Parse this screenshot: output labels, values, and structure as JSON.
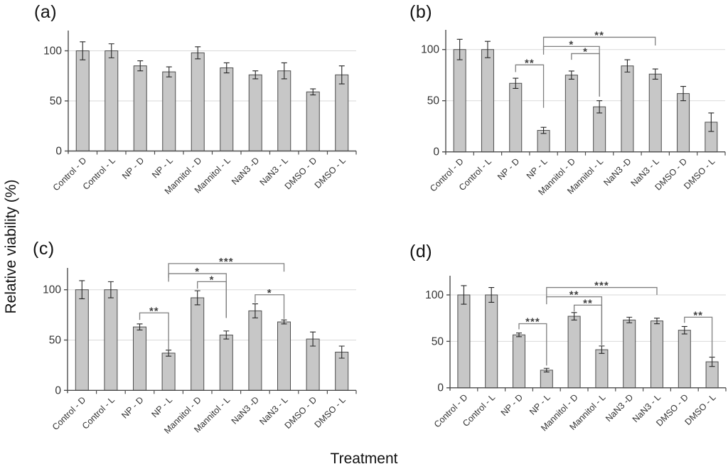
{
  "figure": {
    "ylabel": "Relative viability (%)",
    "xlabel": "Treatment"
  },
  "style": {
    "bar_fill": "#c7c7c7",
    "bar_stroke": "#4d4d4d",
    "error_bar": "#262626",
    "gridline": "#d9d9d9",
    "axis": "#4d4d4d",
    "tick_label": "#333333",
    "bracket": "#7f7f7f",
    "sig_label": "#3f3f3f"
  },
  "chart_data": [
    {
      "type": "bar",
      "panel": "(a)",
      "categories": [
        "Control - D",
        "Control - L",
        "NP - D",
        "NP - L",
        "Mannitol - D",
        "Mannitol - L",
        "NaN3 -D",
        "NaN3 - L",
        "DMSO - D",
        "DMSO - L"
      ],
      "values": [
        100,
        100,
        85,
        79,
        98,
        83,
        76,
        80,
        59,
        76
      ],
      "errors": [
        9,
        7,
        5,
        5,
        6,
        5,
        4,
        8,
        3,
        9
      ],
      "yticks": [
        0,
        50,
        100
      ],
      "ylim": [
        0,
        120
      ],
      "grid": true,
      "significance": []
    },
    {
      "type": "bar",
      "panel": "(b)",
      "categories": [
        "Control - D",
        "Control - L",
        "NP - D",
        "NP - L",
        "Mannitol - D",
        "Mannitol - L",
        "NaN3 -D",
        "NaN3 - L",
        "DMSO - D",
        "DMSO - L"
      ],
      "values": [
        100,
        100,
        67,
        21,
        75,
        44,
        84,
        76,
        57,
        29
      ],
      "errors": [
        10,
        8,
        5,
        3,
        4,
        6,
        6,
        5,
        7,
        9
      ],
      "yticks": [
        0,
        50,
        100
      ],
      "ylim": [
        0,
        120
      ],
      "grid": true,
      "significance": [
        {
          "from": "NP - D",
          "to": "NP - L",
          "label": "**",
          "y": 85,
          "drop_from": 7,
          "drop_to": 42
        },
        {
          "from": "Mannitol - D",
          "to": "Mannitol - L",
          "label": "*",
          "y": 96,
          "drop_from": 6,
          "drop_to": 42
        },
        {
          "from": "NP - L",
          "to": "Mannitol - L",
          "label": "*",
          "y": 103,
          "drop_from": 8,
          "drop_to": 49
        },
        {
          "from": "NP - L",
          "to": "NaN3 - L",
          "label": "**",
          "y": 112,
          "drop_from": 12,
          "drop_to": 8
        }
      ]
    },
    {
      "type": "bar",
      "panel": "(c)",
      "categories": [
        "Control - D",
        "Control - L",
        "NP - D",
        "NP - L",
        "Mannitol - D",
        "Mannitol - L",
        "NaN3 -D",
        "NaN3 - L",
        "DMSO - D",
        "DMSO - L"
      ],
      "values": [
        100,
        100,
        63,
        37,
        92,
        55,
        79,
        68,
        51,
        38
      ],
      "errors": [
        9,
        8,
        3,
        3,
        7,
        4,
        7,
        2,
        7,
        6
      ],
      "yticks": [
        0,
        50,
        100
      ],
      "ylim": [
        0,
        120
      ],
      "grid": true,
      "significance": [
        {
          "from": "NP - D",
          "to": "NP - L",
          "label": "**",
          "y": 77,
          "drop_from": 7,
          "drop_to": 37
        },
        {
          "from": "Mannitol - D",
          "to": "Mannitol - L",
          "label": "*",
          "y": 108,
          "drop_from": 7,
          "drop_to": 36
        },
        {
          "from": "NP - L",
          "to": "Mannitol - L",
          "label": "*",
          "y": 116,
          "drop_from": 8,
          "drop_to": 44
        },
        {
          "from": "NP - L",
          "to": "NaN3 - L",
          "label": "***",
          "y": 126,
          "drop_from": 14,
          "drop_to": 8
        },
        {
          "from": "NaN3 -D",
          "to": "NaN3 - L",
          "label": "*",
          "y": 95,
          "drop_from": 8,
          "drop_to": 24
        }
      ]
    },
    {
      "type": "bar",
      "panel": "(d)",
      "categories": [
        "Control - D",
        "Control - L",
        "NP - D",
        "NP - L",
        "Mannitol - D",
        "Mannitol - L",
        "NaN3 -D",
        "NaN3 - L",
        "DMSO - D",
        "DMSO - L"
      ],
      "values": [
        100,
        100,
        57,
        19,
        77,
        41,
        73,
        72,
        62,
        28
      ],
      "errors": [
        10,
        8,
        2,
        2,
        4,
        4,
        3,
        3,
        4,
        5
      ],
      "yticks": [
        0,
        50,
        100
      ],
      "ylim": [
        0,
        120
      ],
      "grid": true,
      "significance": [
        {
          "from": "NP - D",
          "to": "NP - L",
          "label": "***",
          "y": 69,
          "drop_from": 6,
          "drop_to": 45
        },
        {
          "from": "Mannitol - D",
          "to": "Mannitol - L",
          "label": "**",
          "y": 89,
          "drop_from": 7,
          "drop_to": 43
        },
        {
          "from": "NP - L",
          "to": "Mannitol - L",
          "label": "**",
          "y": 98,
          "drop_from": 8,
          "drop_to": 52
        },
        {
          "from": "NP - L",
          "to": "NaN3 - L",
          "label": "***",
          "y": 108,
          "drop_from": 12,
          "drop_to": 8
        },
        {
          "from": "DMSO - D",
          "to": "DMSO - L",
          "label": "**",
          "y": 76,
          "drop_from": 6,
          "drop_to": 43
        }
      ]
    }
  ]
}
